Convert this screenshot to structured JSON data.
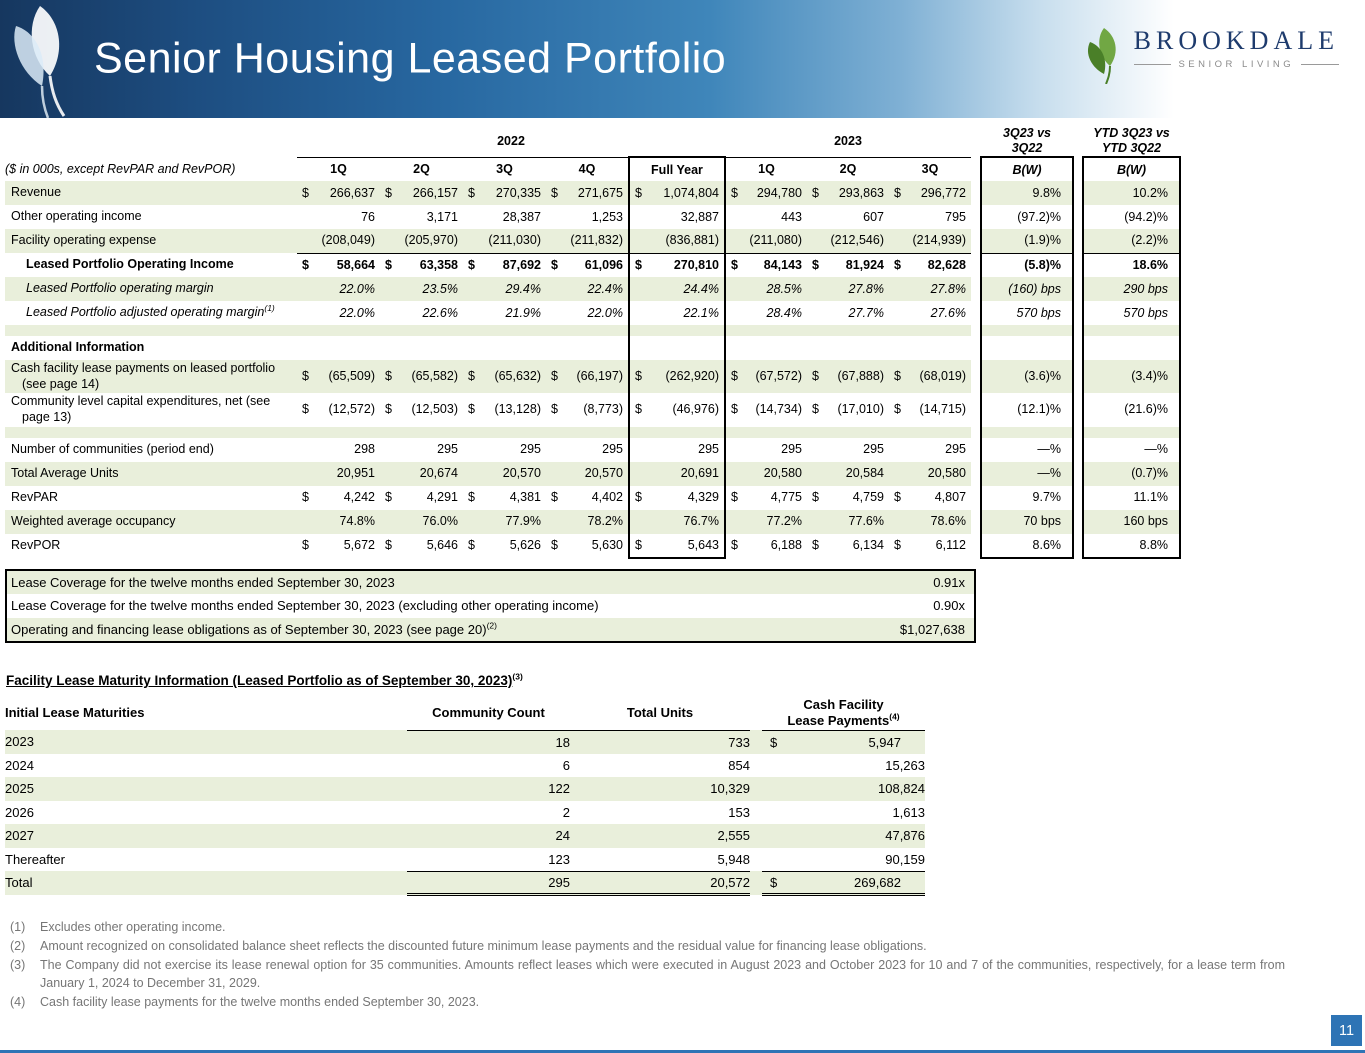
{
  "page_number": "11",
  "header": {
    "title": "Senior Housing Leased Portfolio",
    "brand": {
      "name": "BROOKDALE",
      "tagline": "SENIOR LIVING"
    }
  },
  "main_table": {
    "note": "($ in 000s, except RevPAR and RevPOR)",
    "year_groups": [
      "2022",
      "2023"
    ],
    "vs_headers": [
      [
        "3Q23 vs",
        "3Q22"
      ],
      [
        "YTD 3Q23 vs",
        "YTD 3Q22"
      ]
    ],
    "col_headers": [
      "1Q",
      "2Q",
      "3Q",
      "4Q",
      "Full Year",
      "1Q",
      "2Q",
      "3Q",
      "B(W)",
      "B(W)"
    ],
    "rows": [
      {
        "label": "Revenue",
        "shade": true,
        "cells": [
          "$ 266,637",
          "$ 266,157",
          "$ 270,335",
          "$ 271,675",
          "$ 1,074,804",
          "$ 294,780",
          "$ 293,863",
          "$ 296,772",
          "9.8%",
          "10.2%"
        ]
      },
      {
        "label": "Other operating income",
        "shade": false,
        "cells": [
          "76",
          "3,171",
          "28,387",
          "1,253",
          "32,887",
          "443",
          "607",
          "795",
          "(97.2)%",
          "(94.2)%"
        ]
      },
      {
        "label": "Facility operating expense",
        "shade": true,
        "cells": [
          "(208,049)",
          "(205,970)",
          "(211,030)",
          "(211,832)",
          "(836,881)",
          "(211,080)",
          "(212,546)",
          "(214,939)",
          "(1.9)%",
          "(2.2)%"
        ]
      },
      {
        "label": "Leased Portfolio Operating Income",
        "shade": false,
        "bold": true,
        "indent": true,
        "top": true,
        "cells": [
          "$ 58,664",
          "$ 63,358",
          "$ 87,692",
          "$ 61,096",
          "$ 270,810",
          "$ 84,143",
          "$ 81,924",
          "$ 82,628",
          "(5.8)%",
          "18.6%"
        ]
      },
      {
        "label": "Leased Portfolio operating margin",
        "shade": true,
        "italic": true,
        "indent": true,
        "cells": [
          "22.0%",
          "23.5%",
          "29.4%",
          "22.4%",
          "24.4%",
          "28.5%",
          "27.8%",
          "27.8%",
          "(160) bps",
          "290 bps"
        ]
      },
      {
        "label": "Leased Portfolio adjusted operating margin",
        "sup": "(1)",
        "shade": false,
        "italic": true,
        "indent": true,
        "hang": true,
        "cells": [
          "22.0%",
          "22.6%",
          "21.9%",
          "22.0%",
          "22.1%",
          "28.4%",
          "27.7%",
          "27.6%",
          "570 bps",
          "570 bps"
        ]
      },
      {
        "blank": true,
        "shade": true
      },
      {
        "label": "Additional Information",
        "shade": false,
        "bold": true,
        "cells": [
          "",
          "",
          "",
          "",
          "",
          "",
          "",
          "",
          "",
          ""
        ]
      },
      {
        "label": "Cash facility lease payments on leased portfolio (see page 14)",
        "shade": true,
        "hang": true,
        "cells": [
          "$ (65,509)",
          "$ (65,582)",
          "$ (65,632)",
          "$ (66,197)",
          "$ (262,920)",
          "$ (67,572)",
          "$ (67,888)",
          "$ (68,019)",
          "(3.6)%",
          "(3.4)%"
        ]
      },
      {
        "label": "Community level capital expenditures, net (see page 13)",
        "shade": false,
        "hang": true,
        "cells": [
          "$ (12,572)",
          "$ (12,503)",
          "$ (13,128)",
          "$ (8,773)",
          "$ (46,976)",
          "$ (14,734)",
          "$ (17,010)",
          "$ (14,715)",
          "(12.1)%",
          "(21.6)%"
        ]
      },
      {
        "blank": true,
        "shade": true
      },
      {
        "label": "Number of communities (period end)",
        "shade": false,
        "cells": [
          "298",
          "295",
          "295",
          "295",
          "295",
          "295",
          "295",
          "295",
          "—%",
          "—%"
        ]
      },
      {
        "label": "Total Average Units",
        "shade": true,
        "cells": [
          "20,951",
          "20,674",
          "20,570",
          "20,570",
          "20,691",
          "20,580",
          "20,584",
          "20,580",
          "—%",
          "(0.7)%"
        ]
      },
      {
        "label": "RevPAR",
        "shade": false,
        "cells": [
          "$ 4,242",
          "$ 4,291",
          "$ 4,381",
          "$ 4,402",
          "$ 4,329",
          "$ 4,775",
          "$ 4,759",
          "$ 4,807",
          "9.7%",
          "11.1%"
        ]
      },
      {
        "label": "Weighted average occupancy",
        "shade": true,
        "cells": [
          "74.8%",
          "76.0%",
          "77.9%",
          "78.2%",
          "76.7%",
          "77.2%",
          "77.6%",
          "78.6%",
          "70 bps",
          "160 bps"
        ]
      },
      {
        "label": "RevPOR",
        "shade": false,
        "cells": [
          "$ 5,672",
          "$ 5,646",
          "$ 5,626",
          "$ 5,630",
          "$ 5,643",
          "$ 6,188",
          "$ 6,134",
          "$ 6,112",
          "8.6%",
          "8.8%"
        ]
      }
    ]
  },
  "lease_coverage": {
    "rows": [
      {
        "label": "Lease Coverage for the twelve months ended September 30, 2023",
        "value": "0.91x",
        "shade": true
      },
      {
        "label": "Lease Coverage for the twelve months ended September 30, 2023 (excluding other operating income)",
        "value": "0.90x",
        "shade": false
      },
      {
        "label": "Operating and financing lease obligations as of September 30, 2023 (see page 20)",
        "sup": "(2)",
        "value": "$1,027,638",
        "shade": true
      }
    ]
  },
  "maturity": {
    "title": "Facility Lease Maturity Information (Leased Portfolio as of September 30, 2023)",
    "title_sup": "(3)",
    "headers": {
      "label": "Initial Lease Maturities",
      "count": "Community Count",
      "units": "Total Units",
      "cash_lines": [
        "Cash Facility",
        "Lease Payments"
      ],
      "cash_sup": "(4)"
    },
    "rows": [
      {
        "label": "2023",
        "count": "18",
        "units": "733",
        "cash": "$ 5,947",
        "shade": true
      },
      {
        "label": "2024",
        "count": "6",
        "units": "854",
        "cash": "15,263",
        "shade": false
      },
      {
        "label": "2025",
        "count": "122",
        "units": "10,329",
        "cash": "108,824",
        "shade": true
      },
      {
        "label": "2026",
        "count": "2",
        "units": "153",
        "cash": "1,613",
        "shade": false
      },
      {
        "label": "2027",
        "count": "24",
        "units": "2,555",
        "cash": "47,876",
        "shade": true
      },
      {
        "label": "Thereafter",
        "count": "123",
        "units": "5,948",
        "cash": "90,159",
        "shade": false
      },
      {
        "label": "Total",
        "count": "295",
        "units": "20,572",
        "cash": "$ 269,682",
        "shade": true,
        "total": true
      }
    ]
  },
  "footnotes": [
    {
      "num": "(1)",
      "text": "Excludes other operating income."
    },
    {
      "num": "(2)",
      "text": "Amount recognized on consolidated balance sheet reflects the discounted future minimum lease payments and the residual value for financing lease obligations."
    },
    {
      "num": "(3)",
      "text": "The Company did not exercise its lease renewal option for 35 communities. Amounts reflect leases which were executed in August 2023 and October 2023 for 10 and 7 of the communities, respectively, for a lease term from January 1, 2024 to December 31, 2029.",
      "justify": true
    },
    {
      "num": "(4)",
      "text": "Cash facility lease payments for the twelve months ended September 30, 2023."
    }
  ],
  "colors": {
    "header_blue": "#2e74b5",
    "row_stripe": "#e9efdb",
    "brand_navy": "#1e3b6d",
    "leaf_green": "#6aa741"
  }
}
